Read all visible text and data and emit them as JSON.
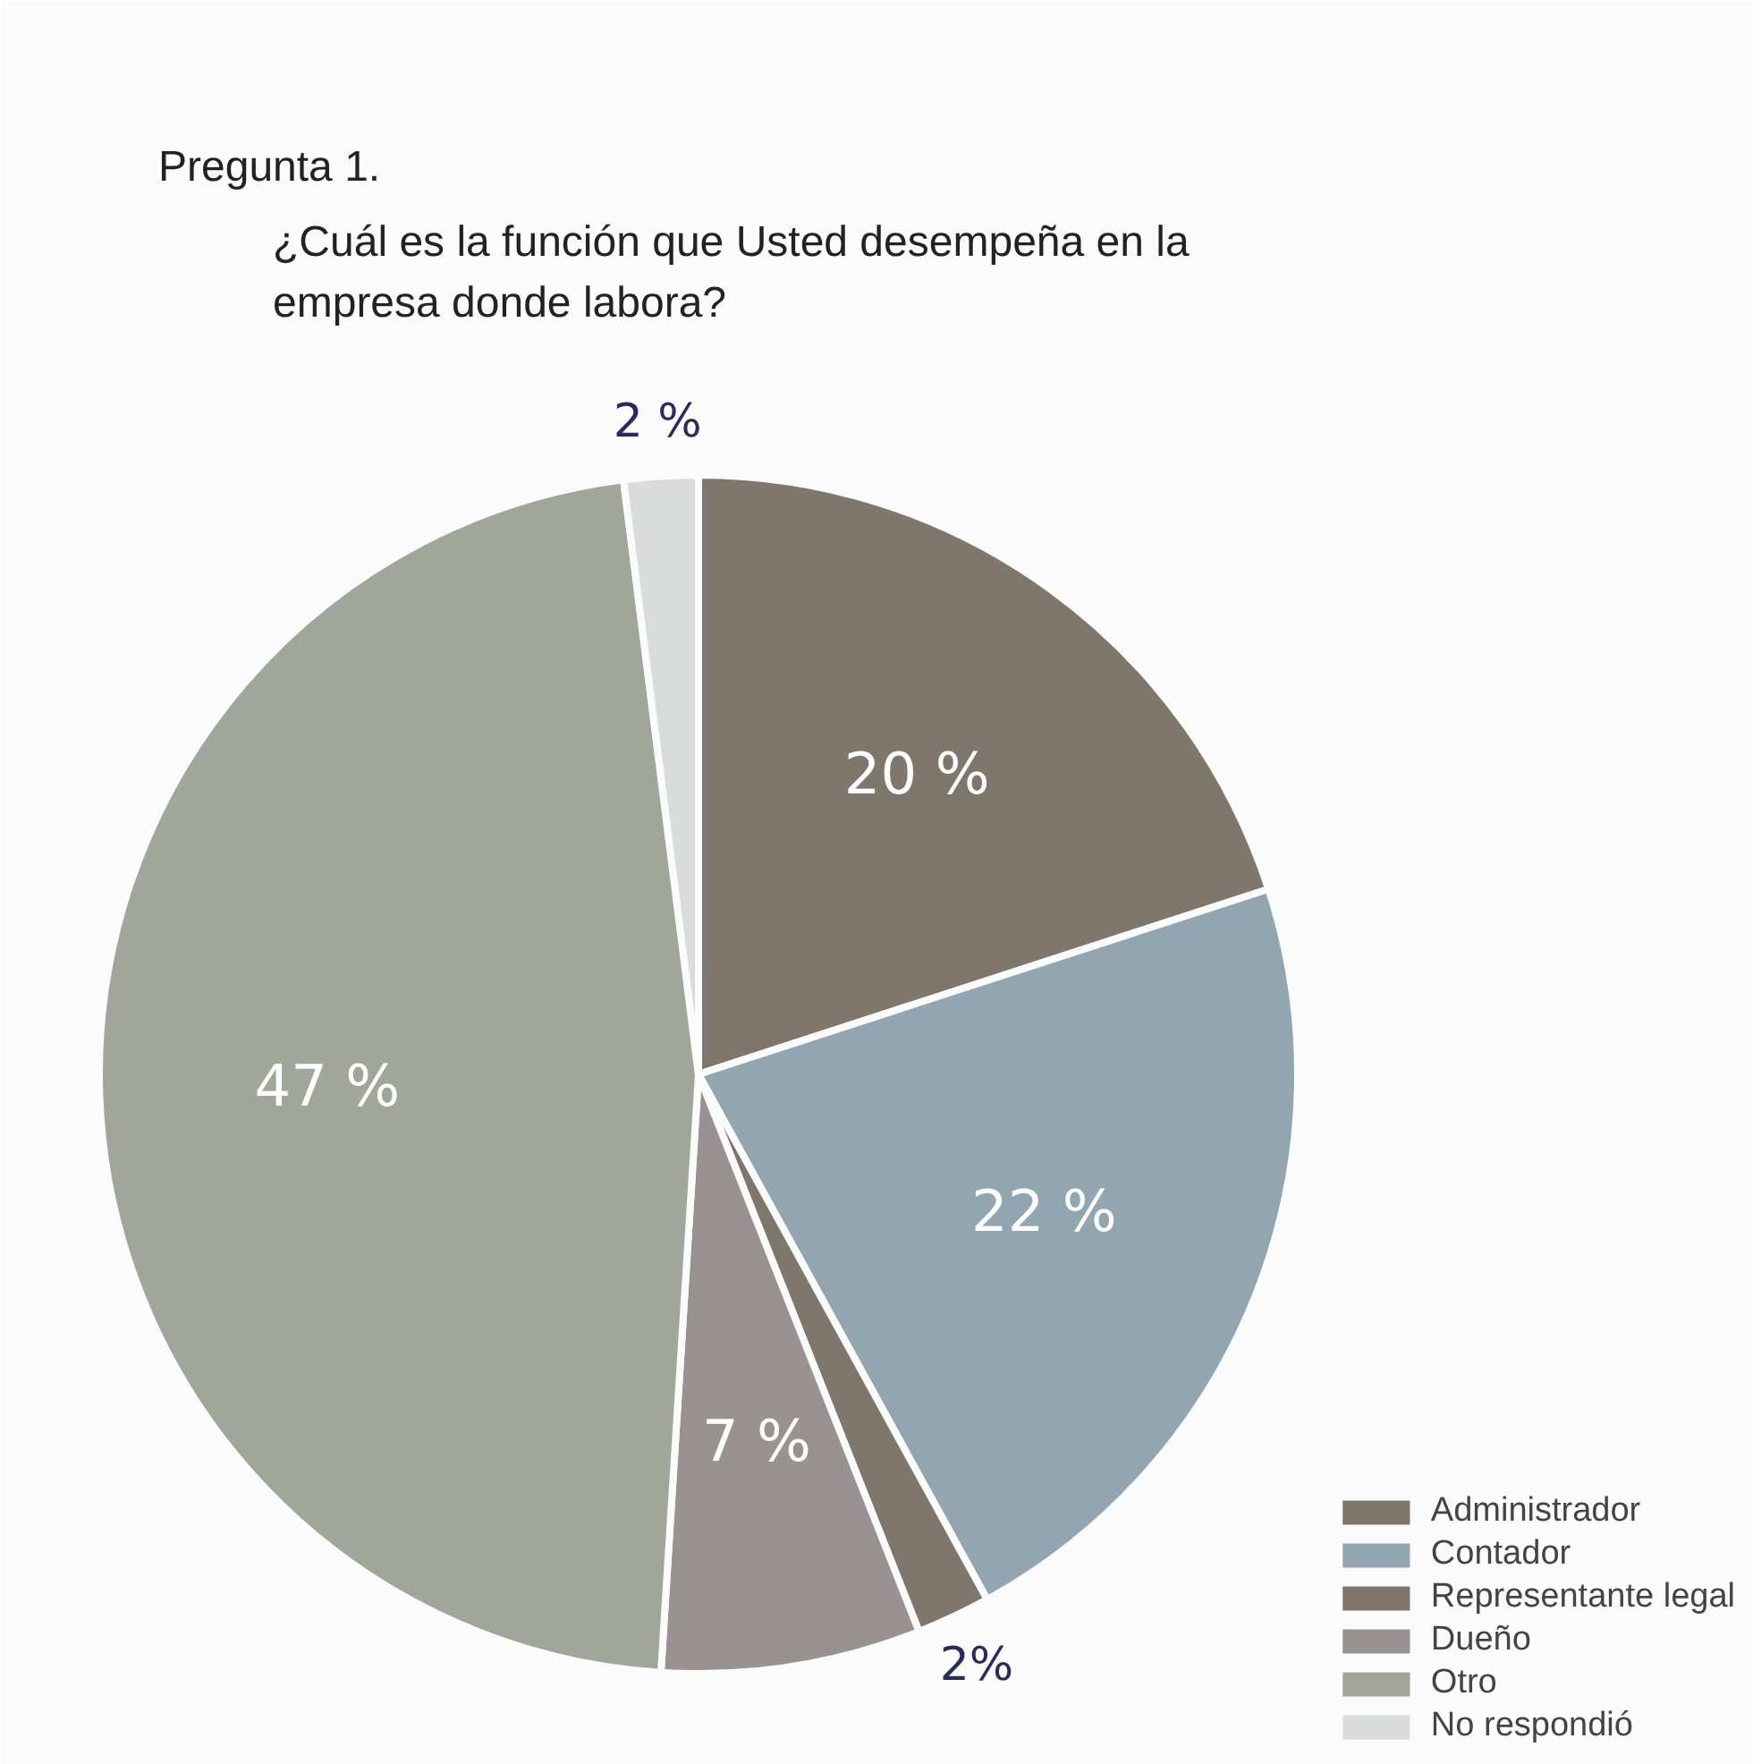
{
  "chart_data": {
    "type": "pie",
    "title": "Pregunta 1.",
    "subtitle": "¿Cuál es la función que Usted desempeña en la\nempresa donde labora?",
    "categories": [
      "Administrador",
      "Contador",
      "Representante legal",
      "Dueño",
      "Otro",
      "No respondió"
    ],
    "values": [
      20,
      22,
      2,
      7,
      47,
      2
    ],
    "value_labels": [
      "20 %",
      "22 %",
      "2%",
      "7 %",
      "47 %",
      "2 %"
    ],
    "colors": [
      "#7f776b",
      "#92a6b2",
      "#7f776b",
      "#9a9292",
      "#a2a59a",
      "#d9dcda"
    ],
    "legend": "bottom right"
  }
}
